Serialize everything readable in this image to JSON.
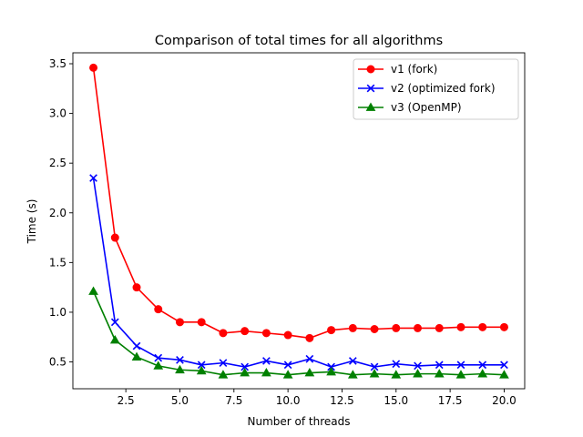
{
  "chart_data": {
    "type": "line",
    "title": "Comparison of total times for all algorithms",
    "xlabel": "Number of threads",
    "ylabel": "Time (s)",
    "xlim": [
      0.05,
      20.95
    ],
    "ylim": [
      0.23,
      3.61
    ],
    "xticks": [
      2.5,
      5.0,
      7.5,
      10.0,
      12.5,
      15.0,
      17.5,
      20.0
    ],
    "xtick_labels": [
      "2.5",
      "5.0",
      "7.5",
      "10.0",
      "12.5",
      "15.0",
      "17.5",
      "20.0"
    ],
    "yticks": [
      0.5,
      1.0,
      1.5,
      2.0,
      2.5,
      3.0,
      3.5
    ],
    "ytick_labels": [
      "0.5",
      "1.0",
      "1.5",
      "2.0",
      "2.5",
      "3.0",
      "3.5"
    ],
    "grid": false,
    "legend_position": "top-right",
    "x": [
      1,
      2,
      3,
      4,
      5,
      6,
      7,
      8,
      9,
      10,
      11,
      12,
      13,
      14,
      15,
      16,
      17,
      18,
      19,
      20
    ],
    "series": [
      {
        "name": "v1 (fork)",
        "color": "#ff0000",
        "marker": "circle",
        "values": [
          3.46,
          1.75,
          1.25,
          1.03,
          0.9,
          0.9,
          0.79,
          0.81,
          0.79,
          0.77,
          0.74,
          0.82,
          0.84,
          0.83,
          0.84,
          0.84,
          0.84,
          0.85,
          0.85,
          0.85
        ]
      },
      {
        "name": "v2 (optimized fork)",
        "color": "#0000ff",
        "marker": "x",
        "values": [
          2.35,
          0.9,
          0.66,
          0.54,
          0.52,
          0.47,
          0.49,
          0.45,
          0.51,
          0.47,
          0.53,
          0.45,
          0.51,
          0.45,
          0.48,
          0.46,
          0.47,
          0.47,
          0.47,
          0.47
        ]
      },
      {
        "name": "v3 (OpenMP)",
        "color": "#008000",
        "marker": "triangle",
        "values": [
          1.21,
          0.72,
          0.55,
          0.46,
          0.42,
          0.41,
          0.37,
          0.39,
          0.39,
          0.37,
          0.39,
          0.4,
          0.37,
          0.38,
          0.37,
          0.38,
          0.38,
          0.37,
          0.38,
          0.37
        ]
      }
    ]
  }
}
